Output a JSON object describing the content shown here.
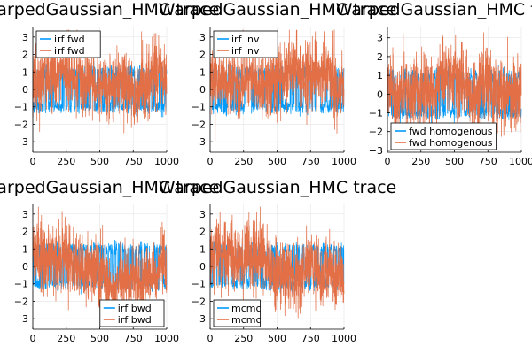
{
  "colors": {
    "series1": "#009AFA",
    "series2": "#E26F46",
    "grid": "#E5E5E5",
    "axis": "#000000"
  },
  "chart_data": [
    {
      "type": "line",
      "title": "WarpedGaussian_HMC trace",
      "xlim": [
        0,
        1000
      ],
      "ylim": [
        -3.6,
        3.6
      ],
      "xticks": [
        0,
        250,
        500,
        750,
        1000
      ],
      "yticks": [
        -3,
        -2,
        -1,
        0,
        1,
        2,
        3
      ],
      "grid": true,
      "legend_position": "top-left",
      "series": [
        {
          "name": "irf fwd",
          "pattern": "two-mode chain, jumps between about +1 and -1",
          "n": 1000
        },
        {
          "name": "irf fwd",
          "pattern": "volatile chain, range about -3.3 to 3.4",
          "n": 1000
        }
      ]
    },
    {
      "type": "line",
      "title": "WarpedGaussian_HMC trace",
      "xlim": [
        0,
        1000
      ],
      "ylim": [
        -3.6,
        3.6
      ],
      "xticks": [
        0,
        250,
        500,
        750,
        1000
      ],
      "yticks": [
        -3,
        -2,
        -1,
        0,
        1,
        2,
        3
      ],
      "grid": true,
      "legend_position": "top-left",
      "series": [
        {
          "name": "irf inv",
          "pattern": "two-mode chain, jumps between about +1 and -1",
          "n": 1000
        },
        {
          "name": "irf inv",
          "pattern": "volatile chain, range about -3.3 to 3.1",
          "n": 1000
        }
      ]
    },
    {
      "type": "line",
      "title": "WarpedGaussian_HMC trace",
      "xlim": [
        0,
        1000
      ],
      "ylim": [
        -3.1,
        3.6
      ],
      "xticks": [
        0,
        250,
        500,
        750,
        1000
      ],
      "yticks": [
        -3,
        -2,
        -1,
        0,
        1,
        2,
        3
      ],
      "grid": true,
      "legend_position": "bottom-left",
      "series": [
        {
          "name": "fwd homogenous",
          "pattern": "two-mode chain, jumps between about +1 and -1",
          "n": 1000
        },
        {
          "name": "fwd homogenous",
          "pattern": "volatile chain, range about -2.8 to 3.1",
          "n": 1000
        }
      ]
    },
    {
      "type": "line",
      "title": "WarpedGaussian_HMC trace",
      "xlim": [
        0,
        1000
      ],
      "ylim": [
        -3.6,
        3.6
      ],
      "xticks": [
        0,
        250,
        500,
        750,
        1000
      ],
      "yticks": [
        -3,
        -2,
        -1,
        0,
        1,
        2,
        3
      ],
      "grid": true,
      "legend_position": "bottom-right",
      "series": [
        {
          "name": "irf bwd",
          "pattern": "two-mode chain, jumps between about +1 and -1",
          "n": 1000
        },
        {
          "name": "irf bwd",
          "pattern": "volatile chain, range about -3.3 to 3.3",
          "n": 1000
        }
      ]
    },
    {
      "type": "line",
      "title": "WarpedGaussian_HMC trace",
      "xlim": [
        0,
        1000
      ],
      "ylim": [
        -3.6,
        3.6
      ],
      "xticks": [
        0,
        250,
        500,
        750,
        1000
      ],
      "yticks": [
        -3,
        -2,
        -1,
        0,
        1,
        2,
        3
      ],
      "grid": true,
      "legend_position": "bottom-left",
      "series": [
        {
          "name": "mcmc",
          "pattern": "two-mode chain, jumps between about +1 and -1",
          "n": 1000
        },
        {
          "name": "mcmc",
          "pattern": "volatile chain, range about -3.4 to 3.4",
          "n": 1000
        }
      ]
    }
  ]
}
